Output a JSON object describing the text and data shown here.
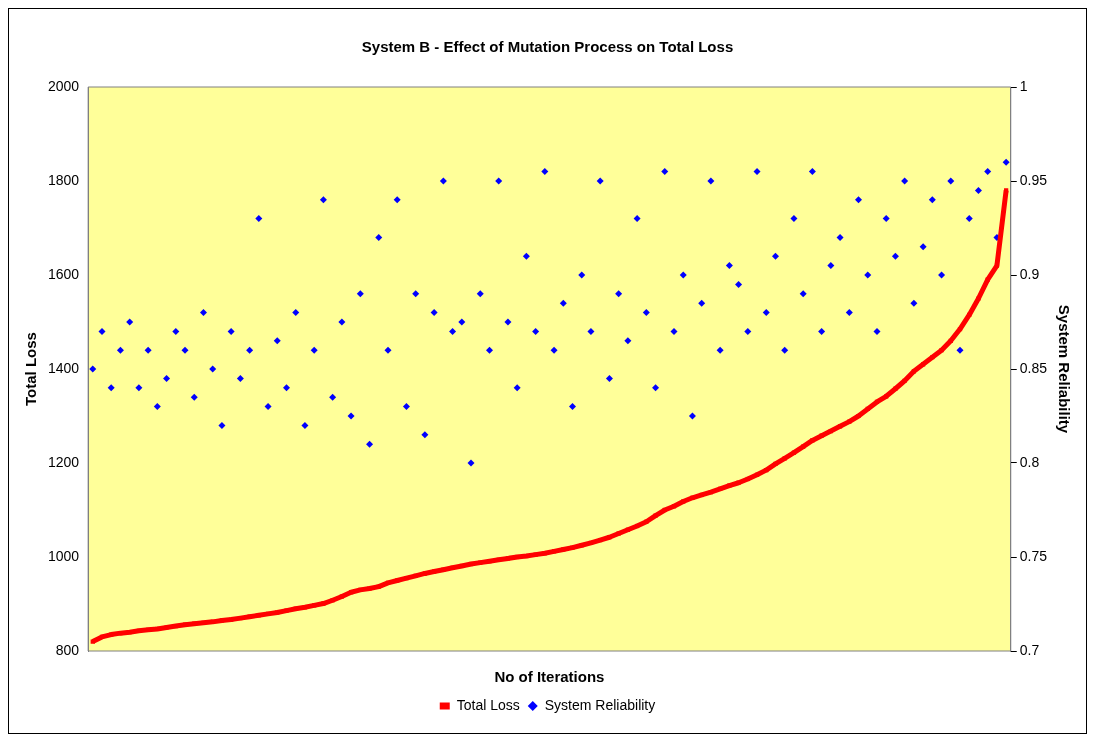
{
  "chart_data": {
    "type": "scatter",
    "title": "System B - Effect of Mutation Process on Total Loss",
    "xlabel": "No of Iterations",
    "ylabel": "Total Loss",
    "y2label": "System Reliability",
    "categories": [
      null,
      null,
      null,
      null,
      null,
      null,
      null,
      null,
      null,
      null,
      null,
      null,
      null,
      null,
      null,
      null,
      null,
      null,
      null,
      null,
      null,
      null,
      null,
      null,
      null,
      null,
      null,
      null,
      null,
      null,
      null,
      null,
      null,
      null,
      null,
      null,
      null,
      null,
      null,
      null,
      null,
      null,
      null,
      null,
      null,
      null,
      null,
      null,
      null,
      null,
      null,
      null,
      null,
      null,
      null,
      null,
      null,
      null,
      null,
      null,
      null,
      null,
      null,
      null,
      null,
      null,
      null,
      null,
      null,
      null,
      null,
      null,
      null,
      null,
      null,
      null,
      null,
      null,
      null,
      null,
      null,
      null,
      null,
      null,
      null,
      null,
      null,
      null,
      null,
      null,
      null,
      null,
      null,
      null,
      null,
      null,
      null,
      null,
      null,
      null
    ],
    "series": [
      {
        "name": "Total Loss",
        "type": "line",
        "color": "#ff0000",
        "marker": "square",
        "values": [
          820,
          830,
          835,
          838,
          840,
          843,
          845,
          847,
          850,
          853,
          856,
          858,
          860,
          862,
          865,
          867,
          870,
          873,
          876,
          879,
          882,
          886,
          890,
          893,
          897,
          901,
          908,
          916,
          925,
          930,
          933,
          937,
          945,
          950,
          955,
          960,
          965,
          969,
          973,
          977,
          981,
          985,
          988,
          991,
          994,
          997,
          1000,
          1002,
          1005,
          1008,
          1012,
          1016,
          1020,
          1025,
          1030,
          1036,
          1042,
          1050,
          1058,
          1066,
          1075,
          1088,
          1100,
          1108,
          1118,
          1126,
          1132,
          1138,
          1145,
          1152,
          1158,
          1166,
          1175,
          1185,
          1198,
          1210,
          1222,
          1235,
          1248,
          1258,
          1268,
          1278,
          1288,
          1300,
          1315,
          1330,
          1342,
          1358,
          1375,
          1395,
          1410,
          1425,
          1440,
          1460,
          1485,
          1515,
          1550,
          1590,
          1620,
          1780
        ]
      },
      {
        "name": "System Reliability",
        "color": "#0000ff",
        "marker": "diamond",
        "axis": "y2",
        "values": [
          0.85,
          0.87,
          0.84,
          0.86,
          0.875,
          0.84,
          0.86,
          0.83,
          0.845,
          0.87,
          0.86,
          0.835,
          0.88,
          0.85,
          0.82,
          0.87,
          0.845,
          0.86,
          0.93,
          0.83,
          0.865,
          0.84,
          0.88,
          0.82,
          0.86,
          0.94,
          0.835,
          0.875,
          0.825,
          0.89,
          0.81,
          0.92,
          0.86,
          0.94,
          0.83,
          0.89,
          0.815,
          0.88,
          0.95,
          0.87,
          0.875,
          0.8,
          0.89,
          0.86,
          0.95,
          0.875,
          0.84,
          0.91,
          0.87,
          0.955,
          0.86,
          0.885,
          0.83,
          0.9,
          0.87,
          0.95,
          0.845,
          0.89,
          0.865,
          0.93,
          0.88,
          0.84,
          0.955,
          0.87,
          0.9,
          0.825,
          0.885,
          0.95,
          0.86,
          0.905,
          0.895,
          0.87,
          0.955,
          0.88,
          0.91,
          0.86,
          0.93,
          0.89,
          0.955,
          0.87,
          0.905,
          0.92,
          0.88,
          0.94,
          0.9,
          0.87,
          0.93,
          0.91,
          0.95,
          0.885,
          0.915,
          0.94,
          0.9,
          0.95,
          0.86,
          0.93,
          0.945,
          0.955,
          0.92,
          0.96
        ]
      }
    ],
    "ylim": [
      800,
      2000
    ],
    "yticks": [
      800,
      1000,
      1200,
      1400,
      1600,
      1800,
      2000
    ],
    "y2lim": [
      0.7,
      1
    ],
    "y2ticks": [
      0.7,
      0.75,
      0.8,
      0.85,
      0.9,
      0.95,
      1
    ],
    "grid": false,
    "legend": "bottom"
  }
}
